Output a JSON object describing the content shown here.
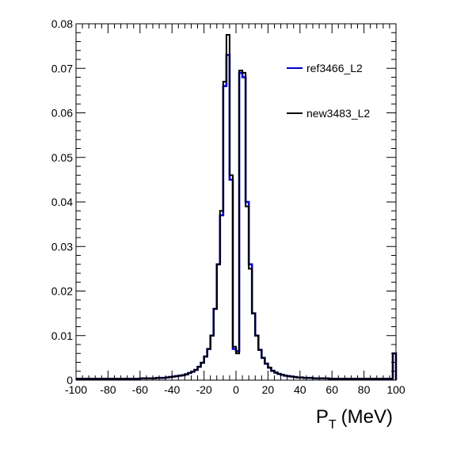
{
  "chart_data": {
    "type": "line",
    "drawstyle": "steps",
    "xlabel": "P",
    "xlabel_sub": "T",
    "xlabel_unit": "(MeV)",
    "ylabel": "",
    "xlim": [
      -100,
      100
    ],
    "ylim": [
      0,
      0.08
    ],
    "xticks": [
      -100,
      -80,
      -60,
      -40,
      -20,
      0,
      20,
      40,
      60,
      80,
      100
    ],
    "yticks": [
      0,
      0.01,
      0.02,
      0.03,
      0.04,
      0.05,
      0.06,
      0.07,
      0.08
    ],
    "ytick_labels": [
      "0",
      "0.01",
      "0.02",
      "0.03",
      "0.04",
      "0.05",
      "0.06",
      "0.07",
      "0.08"
    ],
    "grid": false,
    "legend_position": "top-right",
    "x": [
      -99,
      -97,
      -95,
      -93,
      -91,
      -89,
      -87,
      -85,
      -83,
      -81,
      -79,
      -77,
      -75,
      -73,
      -71,
      -69,
      -67,
      -65,
      -63,
      -61,
      -59,
      -57,
      -55,
      -53,
      -51,
      -49,
      -47,
      -45,
      -43,
      -41,
      -39,
      -37,
      -35,
      -33,
      -31,
      -29,
      -27,
      -25,
      -23,
      -21,
      -19,
      -17,
      -15,
      -13,
      -11,
      -9,
      -7,
      -5,
      -3,
      -1,
      1,
      3,
      5,
      7,
      9,
      11,
      13,
      15,
      17,
      19,
      21,
      23,
      25,
      27,
      29,
      31,
      33,
      35,
      37,
      39,
      41,
      43,
      45,
      47,
      49,
      51,
      53,
      55,
      57,
      59,
      61,
      63,
      65,
      67,
      69,
      71,
      73,
      75,
      77,
      79,
      81,
      83,
      85,
      87,
      89,
      91,
      93,
      95,
      97,
      99
    ],
    "series": [
      {
        "name": "ref3466_L2",
        "color": "#0000cc",
        "values": [
          0.0003,
          0.0003,
          0.0003,
          0.0003,
          0.0003,
          0.0003,
          0.0003,
          0.0003,
          0.0003,
          0.0003,
          0.0003,
          0.0003,
          0.0003,
          0.0003,
          0.0003,
          0.0003,
          0.0003,
          0.0003,
          0.0003,
          0.0003,
          0.0004,
          0.0004,
          0.0004,
          0.0004,
          0.0004,
          0.0005,
          0.0005,
          0.0005,
          0.0006,
          0.0007,
          0.0008,
          0.0009,
          0.001,
          0.0011,
          0.0013,
          0.0016,
          0.0019,
          0.0023,
          0.003,
          0.0039,
          0.0053,
          0.007,
          0.01,
          0.016,
          0.026,
          0.037,
          0.066,
          0.073,
          0.045,
          0.007,
          0.0065,
          0.069,
          0.068,
          0.04,
          0.026,
          0.015,
          0.01,
          0.0068,
          0.005,
          0.0037,
          0.0028,
          0.0021,
          0.0017,
          0.0014,
          0.0012,
          0.001,
          0.0009,
          0.0008,
          0.0007,
          0.0006,
          0.0006,
          0.0005,
          0.0005,
          0.0005,
          0.0004,
          0.0004,
          0.0004,
          0.0004,
          0.0004,
          0.0003,
          0.0003,
          0.0003,
          0.0003,
          0.0003,
          0.0003,
          0.0003,
          0.0003,
          0.0003,
          0.0003,
          0.0003,
          0.0003,
          0.0003,
          0.0003,
          0.0003,
          0.0003,
          0.0003,
          0.0003,
          0.0003,
          0.0003,
          0.006
        ]
      },
      {
        "name": "new3483_L2",
        "color": "#000000",
        "values": [
          0.0003,
          0.0003,
          0.0003,
          0.0003,
          0.0003,
          0.0003,
          0.0003,
          0.0003,
          0.0003,
          0.0003,
          0.0003,
          0.0003,
          0.0003,
          0.0003,
          0.0003,
          0.0003,
          0.0003,
          0.0003,
          0.0003,
          0.0003,
          0.0004,
          0.0004,
          0.0004,
          0.0004,
          0.0004,
          0.0005,
          0.0005,
          0.0005,
          0.0006,
          0.0007,
          0.0008,
          0.0009,
          0.001,
          0.0011,
          0.0013,
          0.0016,
          0.0019,
          0.0023,
          0.003,
          0.0039,
          0.0053,
          0.007,
          0.01,
          0.016,
          0.026,
          0.038,
          0.067,
          0.0775,
          0.046,
          0.0075,
          0.006,
          0.0695,
          0.069,
          0.039,
          0.025,
          0.015,
          0.01,
          0.0068,
          0.005,
          0.0037,
          0.0028,
          0.0021,
          0.0017,
          0.0014,
          0.0012,
          0.001,
          0.0009,
          0.0008,
          0.0007,
          0.0006,
          0.0006,
          0.0005,
          0.0005,
          0.0005,
          0.0004,
          0.0004,
          0.0004,
          0.0004,
          0.0004,
          0.0003,
          0.0003,
          0.0003,
          0.0003,
          0.0003,
          0.0003,
          0.0003,
          0.0003,
          0.0003,
          0.0003,
          0.0003,
          0.0003,
          0.0003,
          0.0003,
          0.0003,
          0.0003,
          0.0003,
          0.0003,
          0.0003,
          0.0003,
          0.006
        ]
      }
    ]
  }
}
